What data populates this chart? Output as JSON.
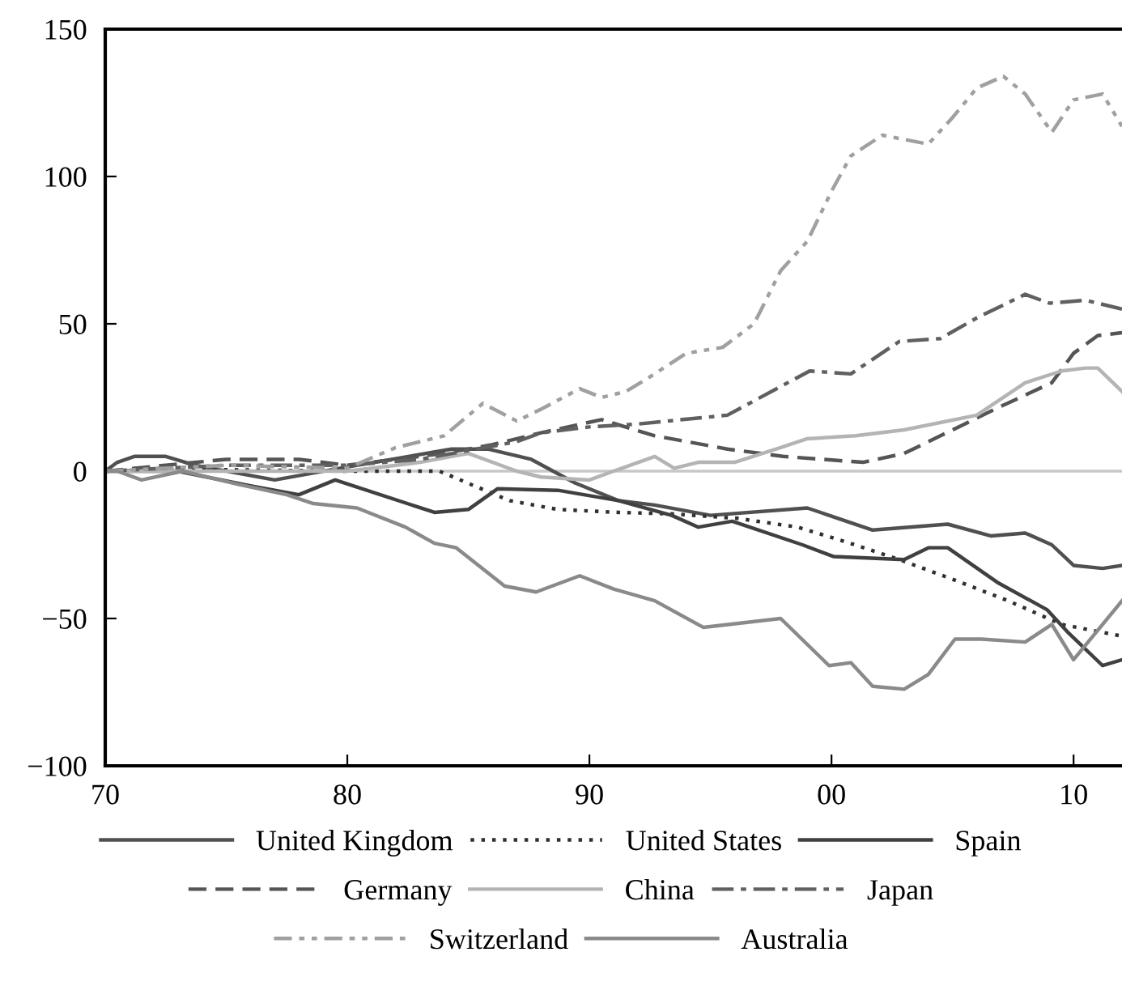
{
  "chart_data": {
    "type": "line",
    "xlim": [
      1970,
      2012
    ],
    "ylim": [
      -100,
      150
    ],
    "xticks": [
      {
        "value": 1970,
        "label": "70"
      },
      {
        "value": 1980,
        "label": "80"
      },
      {
        "value": 1990,
        "label": "90"
      },
      {
        "value": 2000,
        "label": "00"
      },
      {
        "value": 2010,
        "label": "10"
      }
    ],
    "yticks": [
      {
        "value": -100,
        "label": "−100"
      },
      {
        "value": -50,
        "label": "−50"
      },
      0,
      50,
      100,
      150
    ],
    "grid": false,
    "legend": "bottom",
    "ref_lines": [
      {
        "axis": "y",
        "value": 0,
        "color": "#c8c8c8"
      }
    ],
    "series": [
      {
        "name": "United Kingdom",
        "color": "#505050",
        "line_style": "solid",
        "x": [
          1970,
          1970.5,
          1971.2,
          1972.5,
          1973.7,
          1977,
          1979.7,
          1984.3,
          1985.8,
          1987.6,
          1989.4,
          1991.2,
          1992.7,
          1995,
          1999,
          2001.7,
          2004.8,
          2006.6,
          2008,
          2009.1,
          2010,
          2011.2,
          2012
        ],
        "values": [
          0,
          3,
          5,
          5,
          2,
          -3,
          1,
          7.5,
          7.5,
          4,
          -4,
          -10,
          -11.5,
          -15,
          -12.5,
          -20,
          -18,
          -22,
          -21,
          -25,
          -32,
          -33,
          -32
        ]
      },
      {
        "name": "United States",
        "color": "#303030",
        "line_style": "dotted",
        "x": [
          1970,
          1975,
          1980,
          1983.8,
          1986.7,
          1988.7,
          1991.2,
          1993.4,
          1996.1,
          1998.6,
          2000.6,
          2002.8,
          2005.1,
          2007.3,
          2009.5,
          2012
        ],
        "values": [
          0,
          0.5,
          0,
          0,
          -10,
          -13,
          -14,
          -14.5,
          -16,
          -19,
          -24,
          -30,
          -37,
          -44,
          -52,
          -56
        ]
      },
      {
        "name": "Spain",
        "color": "#404040",
        "line_style": "solid",
        "x": [
          1970,
          1973,
          1976,
          1978,
          1979.5,
          1983.6,
          1985,
          1986.2,
          1988.7,
          1991.2,
          1993.4,
          1994.5,
          1995.9,
          1998.8,
          2000.1,
          2003,
          2004,
          2004.8,
          2006.9,
          2008.9,
          2009.8,
          2011.2,
          2012
        ],
        "values": [
          0,
          0,
          -5,
          -8,
          -3,
          -14,
          -13,
          -6,
          -6.5,
          -10,
          -15,
          -19,
          -17,
          -25,
          -29,
          -30,
          -26,
          -26,
          -38,
          -47,
          -55,
          -66,
          -64
        ]
      },
      {
        "name": "Germany",
        "color": "#555555",
        "line_style": "dashed",
        "x": [
          1970,
          1975,
          1978,
          1980,
          1984,
          1986,
          1988,
          1990.5,
          1992.7,
          1995.7,
          1998,
          2001.3,
          2003,
          2005,
          2007,
          2009.1,
          2010,
          2011,
          2012
        ],
        "values": [
          0,
          4,
          4,
          2,
          6,
          9,
          13,
          17.5,
          12,
          7.5,
          5,
          3,
          6,
          14,
          22,
          30,
          40,
          46,
          47
        ]
      },
      {
        "name": "China",
        "color": "#b4b4b4",
        "line_style": "solid",
        "x": [
          1970,
          1975,
          1980,
          1983,
          1985,
          1987,
          1988,
          1990,
          1991,
          1992.7,
          1993.5,
          1994.5,
          1996,
          1997.9,
          1999,
          2001,
          2003,
          2006,
          2008,
          2009.5,
          2010.5,
          2011,
          2012
        ],
        "values": [
          0,
          0,
          0,
          3,
          6,
          0,
          -2,
          -3,
          0,
          5,
          1,
          3,
          3,
          8,
          11,
          12,
          14,
          19,
          30,
          34,
          35,
          35,
          27
        ]
      },
      {
        "name": "Japan",
        "color": "#606060",
        "line_style": "dashdot",
        "x": [
          1970,
          1975,
          1980,
          1983,
          1985,
          1987,
          1988,
          1990,
          1992,
          1995.7,
          1999.1,
          2000.8,
          2002.8,
          2004.5,
          2006,
          2008,
          2009,
          2010.5,
          2012
        ],
        "values": [
          0,
          2,
          2,
          4,
          7,
          10,
          13,
          15,
          16,
          19,
          34,
          33,
          44,
          45,
          52,
          60,
          57,
          58,
          55
        ]
      },
      {
        "name": "Switzerland",
        "color": "#a0a0a0",
        "line_style": "dashdotdot",
        "x": [
          1970,
          1975,
          1980,
          1982,
          1984,
          1985.6,
          1987,
          1988,
          1989.6,
          1990.5,
          1991.5,
          1992.5,
          1994,
          1995.5,
          1996.8,
          1997.9,
          1999,
          2000,
          2000.8,
          2002.1,
          2004,
          2005,
          2006,
          2007.1,
          2008,
          2009.1,
          2010,
          2011.2,
          2012
        ],
        "values": [
          0,
          2,
          1,
          8,
          12,
          23,
          17,
          21,
          28,
          25,
          27,
          32,
          40,
          42,
          50,
          68,
          78,
          95,
          107,
          114,
          111,
          120,
          130,
          134,
          128,
          115,
          126,
          128,
          117
        ]
      },
      {
        "name": "Australia",
        "color": "#8a8a8a",
        "line_style": "solid",
        "x": [
          1970,
          1970.5,
          1971.5,
          1973.2,
          1975.5,
          1977.5,
          1978.6,
          1980.4,
          1982.4,
          1983.6,
          1984.5,
          1986.5,
          1987.8,
          1989.6,
          1991,
          1992.7,
          1994.7,
          1997.9,
          1999.9,
          2000.8,
          2001.7,
          2003,
          2004,
          2005.1,
          2006.2,
          2008,
          2009.1,
          2010,
          2012
        ],
        "values": [
          0,
          0,
          -3,
          0,
          -4.5,
          -8,
          -11,
          -12.5,
          -19,
          -24.5,
          -26,
          -39,
          -41,
          -35.5,
          -40,
          -44,
          -53,
          -50,
          -66,
          -65,
          -73,
          -74,
          -69,
          -57,
          -57,
          -58,
          -52,
          -64,
          -44
        ]
      }
    ]
  }
}
